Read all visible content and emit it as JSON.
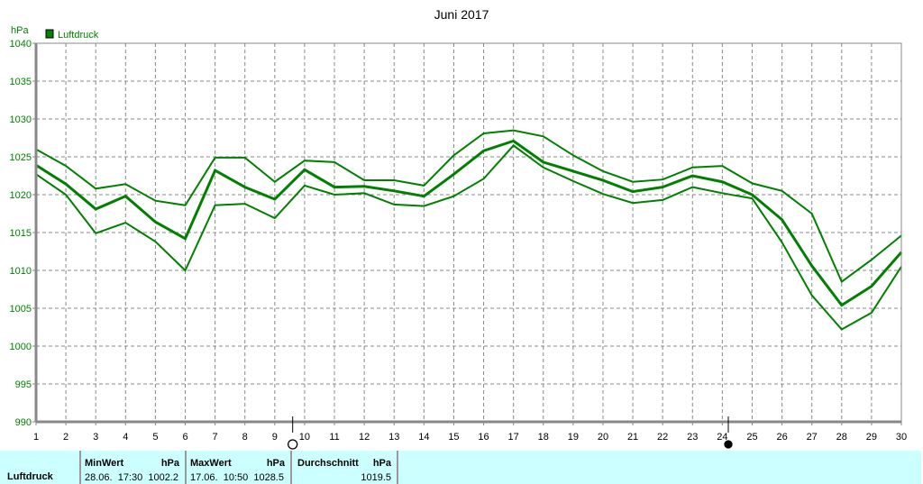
{
  "chart_data": {
    "type": "line",
    "title": "Juni 2017",
    "ylabel": "hPa",
    "xlabel": "",
    "ylim": [
      990,
      1040
    ],
    "xlim": [
      1,
      30
    ],
    "yticks": [
      990,
      995,
      1000,
      1005,
      1010,
      1015,
      1020,
      1025,
      1030,
      1035,
      1040
    ],
    "x": [
      1,
      2,
      3,
      4,
      5,
      6,
      7,
      8,
      9,
      10,
      11,
      12,
      13,
      14,
      15,
      16,
      17,
      18,
      19,
      20,
      21,
      22,
      23,
      24,
      25,
      26,
      27,
      28,
      29,
      30
    ],
    "grid": true,
    "legend": {
      "label": "Luftdruck",
      "color": "#008000",
      "placement": "top-left"
    },
    "series": [
      {
        "name": "max",
        "values": [
          1026.0,
          1023.8,
          1020.8,
          1021.4,
          1019.2,
          1018.6,
          1024.9,
          1024.9,
          1021.7,
          1024.5,
          1024.3,
          1021.9,
          1021.9,
          1021.2,
          1025.2,
          1028.1,
          1028.5,
          1027.7,
          1025.2,
          1023.1,
          1021.7,
          1022.0,
          1023.6,
          1023.8,
          1021.5,
          1020.5,
          1017.5,
          1008.5,
          1011.4,
          1014.6
        ]
      },
      {
        "name": "avg",
        "values": [
          1023.9,
          1021.4,
          1018.1,
          1019.8,
          1016.4,
          1014.2,
          1023.2,
          1021.0,
          1019.4,
          1023.3,
          1021.0,
          1021.1,
          1020.5,
          1019.8,
          1022.7,
          1025.8,
          1027.1,
          1024.3,
          1023.1,
          1021.9,
          1020.4,
          1021.0,
          1022.5,
          1021.7,
          1020.0,
          1016.7,
          1010.6,
          1005.4,
          1007.9,
          1012.4
        ]
      },
      {
        "name": "min",
        "values": [
          1022.7,
          1020.0,
          1014.9,
          1016.3,
          1013.8,
          1010.0,
          1018.6,
          1018.8,
          1016.9,
          1021.2,
          1020.0,
          1020.2,
          1018.7,
          1018.5,
          1019.8,
          1022.1,
          1026.5,
          1023.6,
          1021.8,
          1020.1,
          1018.9,
          1019.3,
          1021.0,
          1020.2,
          1019.5,
          1013.7,
          1006.7,
          1002.2,
          1004.4,
          1010.5
        ]
      }
    ],
    "markers": [
      {
        "name": "full-moon",
        "x": 9.6,
        "filled": false
      },
      {
        "name": "new-moon",
        "x": 24.2,
        "filled": true
      }
    ],
    "color": "#008000"
  },
  "stats": {
    "row_label": "Luftdruck",
    "min_header": "MinWert",
    "min_unit": "hPa",
    "min_value": "28.06.  17:30  1002.2",
    "max_header": "MaxWert",
    "max_unit": "hPa",
    "max_value": "17.06.  10:50  1028.5",
    "avg_header": "Durchschnitt",
    "avg_unit": "hPa",
    "avg_value": "1019.5"
  }
}
